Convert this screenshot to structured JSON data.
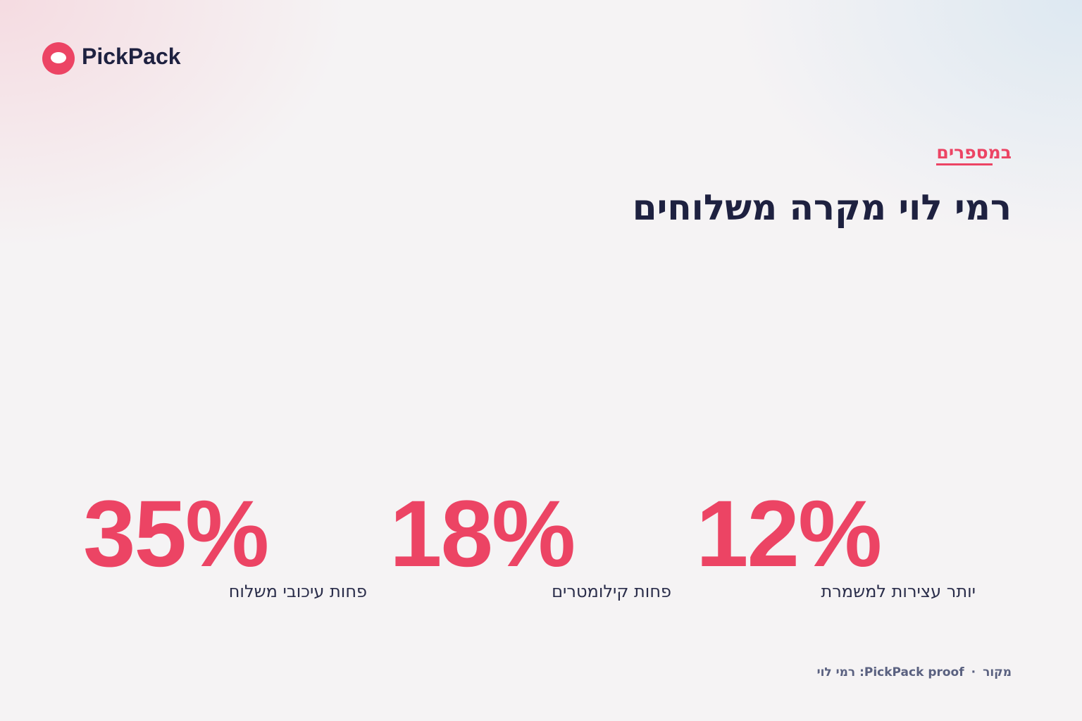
{
  "brand": {
    "name": "PickPack"
  },
  "header": {
    "eyebrow": "במספרים",
    "title": "רמי לוי מקרה משלוחים"
  },
  "stats": [
    {
      "value": "12%",
      "label": "יותר עצירות למשמרת"
    },
    {
      "value": "18%",
      "label": "פחות קילומטרים"
    },
    {
      "value": "35%",
      "label": "פחות עיכובי משלוח"
    }
  ],
  "footer": {
    "label": "מקור",
    "separator": "·",
    "source": "PickPack proof: רמי לוי"
  }
}
